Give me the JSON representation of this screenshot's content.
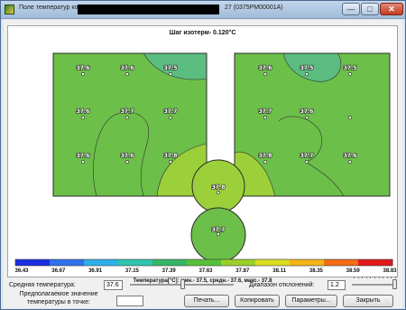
{
  "window": {
    "title": "Поле температур кожи",
    "title_suffix": "27 (0375PM00001A)",
    "minimize": "—",
    "maximize": "□",
    "close": "✕",
    "app_icon": "thermal-map-icon"
  },
  "map": {
    "isotherm_step": "Шаг изотерм- 0.120°C",
    "left_panel_temps": [
      [
        "37.6",
        "37.6",
        "37.5"
      ],
      [
        "37.6",
        "37.7",
        "37.7"
      ],
      [
        "37.6",
        "37.6",
        "37.8"
      ]
    ],
    "right_panel_temps": [
      [
        "37.6",
        "37.5",
        "37.5"
      ],
      [
        "37.7",
        "37.6",
        ""
      ],
      [
        "37.8",
        "37.7",
        "37.6"
      ]
    ],
    "upper_circle_temp": "37.8",
    "lower_circle_temp": "37.7",
    "colors": {
      "base": "#6cbf49",
      "warm": "#9cd03a",
      "cool": "#57b98a",
      "outline": "#2b2b2b"
    }
  },
  "scale": {
    "ticks": [
      "36.43",
      "36.67",
      "36.91",
      "37.15",
      "37.39",
      "37.63",
      "37.87",
      "38.11",
      "38.35",
      "38.59",
      "38.83"
    ],
    "colors": [
      "#1b2fe0",
      "#2f71ee",
      "#2fb0ea",
      "#2fc4b0",
      "#36b766",
      "#57c139",
      "#9bd028",
      "#d8dd1f",
      "#f4b51a",
      "#f36c16",
      "#e21a1a"
    ],
    "caption": "Температура[°C]: мин.-  37.5,  средн.-  37.6,  макс.-  37.8"
  },
  "controls": {
    "avg_temp_label": "Средняя температура:",
    "avg_temp_value": "37.6",
    "avg_temp_slider_fraction": 0.5,
    "deviation_label": "Диапазон отклонений:",
    "deviation_value": "1.2",
    "deviation_slider_fraction": 1.0,
    "expected_label_line1": "Предполагаемое значение",
    "expected_label_line2": "температуры в точке:",
    "expected_value": "",
    "print_button": "Печать...",
    "copy_button": "Копировать",
    "params_button": "Параметры...",
    "close_button": "Закрыть"
  }
}
